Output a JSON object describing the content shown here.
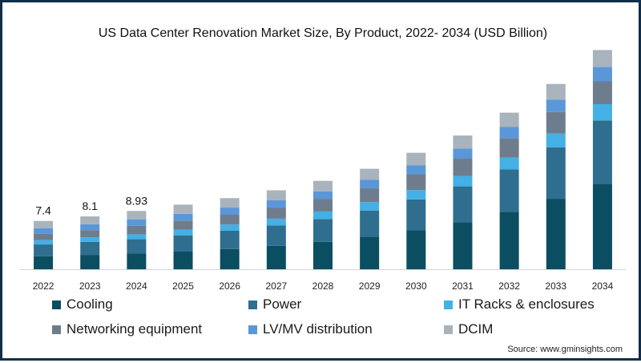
{
  "chart_data": {
    "type": "bar",
    "stacked": true,
    "title": "US Data Center Renovation Market Size, By Product, 2022- 2034 (USD Billion)",
    "xlabel": "",
    "ylabel": "",
    "categories": [
      "2022",
      "2023",
      "2024",
      "2025",
      "2026",
      "2027",
      "2028",
      "2029",
      "2030",
      "2031",
      "2032",
      "2033",
      "2034"
    ],
    "ylim": [
      0,
      36.6
    ],
    "grid": false,
    "legend_position": "bottom",
    "series": [
      {
        "name": "Cooling",
        "color": "#0b4d61",
        "values": [
          2.0,
          2.2,
          2.4,
          2.7,
          3.1,
          3.6,
          4.2,
          5.0,
          6.0,
          7.2,
          8.8,
          10.8,
          13.1
        ]
      },
      {
        "name": "Power",
        "color": "#2f6e8f",
        "values": [
          1.8,
          2.0,
          2.2,
          2.5,
          2.8,
          3.1,
          3.5,
          4.0,
          4.7,
          5.5,
          6.5,
          7.9,
          9.7
        ]
      },
      {
        "name": "IT Racks & enclosures",
        "color": "#43b0e6",
        "values": [
          0.65,
          0.7,
          0.75,
          0.85,
          0.95,
          1.05,
          1.15,
          1.3,
          1.45,
          1.6,
          1.8,
          2.1,
          2.5
        ]
      },
      {
        "name": "Networking equipment",
        "color": "#6e7d8e",
        "values": [
          1.0,
          1.1,
          1.3,
          1.4,
          1.5,
          1.7,
          1.9,
          2.1,
          2.4,
          2.7,
          3.0,
          3.3,
          3.5
        ]
      },
      {
        "name": "LV/MV distribution",
        "color": "#5a97d8",
        "values": [
          0.85,
          0.9,
          1.0,
          1.05,
          1.1,
          1.15,
          1.2,
          1.3,
          1.4,
          1.5,
          1.7,
          1.9,
          2.2
        ]
      },
      {
        "name": "DCIM",
        "color": "#a9b3bc",
        "values": [
          1.1,
          1.2,
          1.28,
          1.4,
          1.45,
          1.5,
          1.6,
          1.7,
          1.9,
          2.0,
          2.2,
          2.4,
          2.6
        ]
      }
    ],
    "data_labels": [
      {
        "category": "2022",
        "text": "7.4"
      },
      {
        "category": "2023",
        "text": "8.1"
      },
      {
        "category": "2024",
        "text": "8.93"
      }
    ]
  },
  "source": "Source: www.gminsights.com"
}
